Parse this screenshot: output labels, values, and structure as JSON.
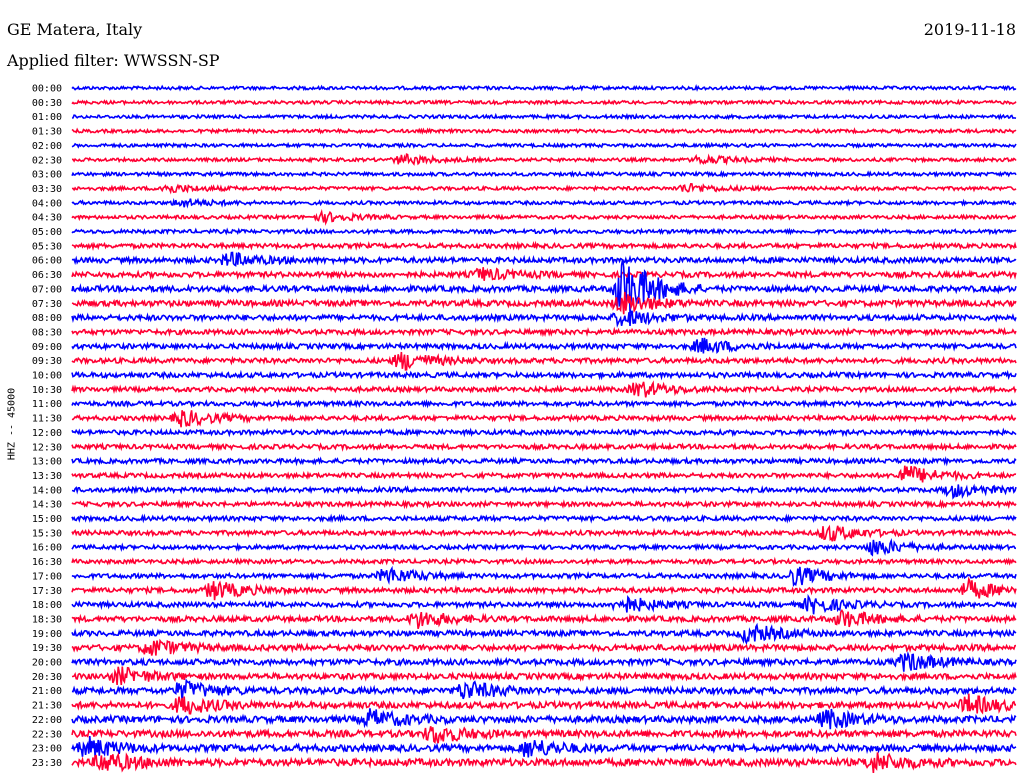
{
  "header": {
    "station": "GE Matera, Italy",
    "date": "2019-11-18",
    "filter": "Applied filter: WWSSN-SP"
  },
  "channel_label": "HHZ -- 45000",
  "chart_data": {
    "type": "line",
    "subtype": "helicorder",
    "ylabel": "HHZ -- 45000",
    "row_labels": [
      "00:00",
      "00:30",
      "01:00",
      "01:30",
      "02:00",
      "02:30",
      "03:00",
      "03:30",
      "04:00",
      "04:30",
      "05:00",
      "05:30",
      "06:00",
      "06:30",
      "07:00",
      "07:30",
      "08:00",
      "08:30",
      "09:00",
      "09:30",
      "10:00",
      "10:30",
      "11:00",
      "11:30",
      "12:00",
      "12:30",
      "13:00",
      "13:30",
      "14:00",
      "14:30",
      "15:00",
      "15:30",
      "16:00",
      "16:30",
      "17:00",
      "17:30",
      "18:00",
      "18:30",
      "19:00",
      "19:30",
      "20:00",
      "20:30",
      "21:00",
      "21:30",
      "22:00",
      "22:30",
      "23:00",
      "23:30"
    ],
    "series_colors": [
      "#0000ff",
      "#ff0033"
    ],
    "minutes_per_row": 30,
    "noise_level": [
      0.1,
      0.1,
      0.1,
      0.1,
      0.1,
      0.1,
      0.12,
      0.12,
      0.12,
      0.12,
      0.15,
      0.25,
      0.35,
      0.35,
      0.4,
      0.4,
      0.35,
      0.3,
      0.3,
      0.3,
      0.3,
      0.25,
      0.25,
      0.25,
      0.25,
      0.25,
      0.25,
      0.25,
      0.25,
      0.25,
      0.25,
      0.25,
      0.2,
      0.2,
      0.25,
      0.3,
      0.3,
      0.35,
      0.35,
      0.4,
      0.4,
      0.4,
      0.45,
      0.45,
      0.5,
      0.5,
      0.5,
      0.55
    ],
    "events": [
      {
        "row": 5,
        "minute": 10.5,
        "amplitude": 1.2
      },
      {
        "row": 5,
        "minute": 20.0,
        "amplitude": 1.0
      },
      {
        "row": 7,
        "minute": 3.0,
        "amplitude": 1.0
      },
      {
        "row": 7,
        "minute": 19.5,
        "amplitude": 1.0
      },
      {
        "row": 8,
        "minute": 3.5,
        "amplitude": 0.9
      },
      {
        "row": 9,
        "minute": 8.0,
        "amplitude": 1.1
      },
      {
        "row": 12,
        "minute": 5.0,
        "amplitude": 1.6
      },
      {
        "row": 13,
        "minute": 13.0,
        "amplitude": 1.4
      },
      {
        "row": 14,
        "minute": 17.5,
        "amplitude": 8.0
      },
      {
        "row": 15,
        "minute": 17.5,
        "amplitude": 2.5
      },
      {
        "row": 16,
        "minute": 17.5,
        "amplitude": 2.0
      },
      {
        "row": 18,
        "minute": 20.0,
        "amplitude": 1.8
      },
      {
        "row": 19,
        "minute": 10.5,
        "amplitude": 2.2
      },
      {
        "row": 21,
        "minute": 18.0,
        "amplitude": 2.0
      },
      {
        "row": 23,
        "minute": 3.5,
        "amplitude": 2.0
      },
      {
        "row": 27,
        "minute": 26.5,
        "amplitude": 2.4
      },
      {
        "row": 28,
        "minute": 28.0,
        "amplitude": 1.6
      },
      {
        "row": 31,
        "minute": 24.0,
        "amplitude": 2.0
      },
      {
        "row": 32,
        "minute": 25.5,
        "amplitude": 2.0
      },
      {
        "row": 34,
        "minute": 10.0,
        "amplitude": 2.0
      },
      {
        "row": 34,
        "minute": 23.0,
        "amplitude": 2.2
      },
      {
        "row": 35,
        "minute": 4.5,
        "amplitude": 2.2
      },
      {
        "row": 35,
        "minute": 28.5,
        "amplitude": 2.2
      },
      {
        "row": 36,
        "minute": 17.5,
        "amplitude": 2.0
      },
      {
        "row": 36,
        "minute": 23.5,
        "amplitude": 2.0
      },
      {
        "row": 37,
        "minute": 11.0,
        "amplitude": 2.0
      },
      {
        "row": 37,
        "minute": 24.5,
        "amplitude": 2.0
      },
      {
        "row": 38,
        "minute": 21.5,
        "amplitude": 2.2
      },
      {
        "row": 39,
        "minute": 2.5,
        "amplitude": 2.0
      },
      {
        "row": 40,
        "minute": 26.5,
        "amplitude": 2.2
      },
      {
        "row": 41,
        "minute": 1.5,
        "amplitude": 2.0
      },
      {
        "row": 42,
        "minute": 3.5,
        "amplitude": 2.2
      },
      {
        "row": 42,
        "minute": 12.5,
        "amplitude": 2.2
      },
      {
        "row": 43,
        "minute": 3.5,
        "amplitude": 2.2
      },
      {
        "row": 43,
        "minute": 28.5,
        "amplitude": 2.2
      },
      {
        "row": 44,
        "minute": 9.5,
        "amplitude": 2.2
      },
      {
        "row": 44,
        "minute": 24.0,
        "amplitude": 2.2
      },
      {
        "row": 45,
        "minute": 11.5,
        "amplitude": 2.2
      },
      {
        "row": 46,
        "minute": 0.5,
        "amplitude": 2.4
      },
      {
        "row": 46,
        "minute": 14.5,
        "amplitude": 2.2
      },
      {
        "row": 47,
        "minute": 1.0,
        "amplitude": 2.4
      },
      {
        "row": 47,
        "minute": 25.5,
        "amplitude": 2.2
      }
    ]
  }
}
